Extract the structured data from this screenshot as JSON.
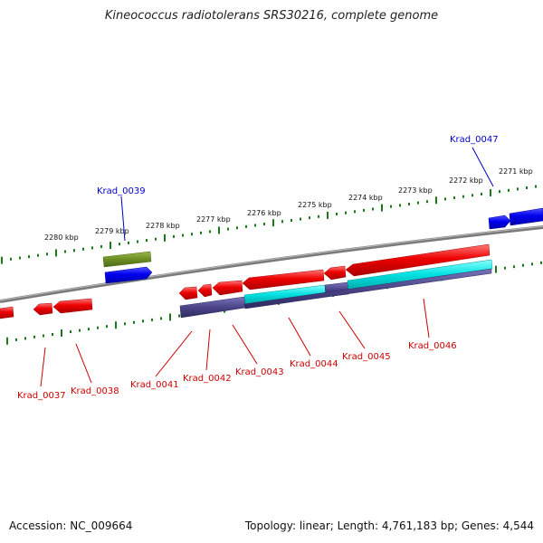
{
  "title": "Kineococcus radiotolerans SRS30216, complete genome",
  "footer": {
    "accession": "Accession: NC_009664",
    "stats": "Topology: linear; Length: 4,761,183 bp; Genes: 4,544"
  },
  "colors": {
    "forward_cds": "#0000dd",
    "reverse_cds": "#dd0000",
    "backbone": "#888888",
    "ticks": "#1a7a1a",
    "cyan_feature": "#00dddd",
    "navy_feature": "#4a4488",
    "olive_feature": "#6b8e23"
  },
  "ticks": [
    {
      "label": "2280 kbp"
    },
    {
      "label": "2279 kbp"
    },
    {
      "label": "2278 kbp"
    },
    {
      "label": "2277 kbp"
    },
    {
      "label": "2276 kbp"
    },
    {
      "label": "2275 kbp"
    },
    {
      "label": "2274 kbp"
    },
    {
      "label": "2273 kbp"
    },
    {
      "label": "2272 kbp"
    },
    {
      "label": "2271 kbp"
    }
  ],
  "genes": [
    {
      "label": "Krad_0047",
      "strand": "forward"
    },
    {
      "label": "Krad_0039",
      "strand": "forward"
    },
    {
      "label": "Krad_0037",
      "strand": "reverse"
    },
    {
      "label": "Krad_0038",
      "strand": "reverse"
    },
    {
      "label": "Krad_0041",
      "strand": "reverse"
    },
    {
      "label": "Krad_0042",
      "strand": "reverse"
    },
    {
      "label": "Krad_0043",
      "strand": "reverse"
    },
    {
      "label": "Krad_0044",
      "strand": "reverse"
    },
    {
      "label": "Krad_0045",
      "strand": "reverse"
    },
    {
      "label": "Krad_0046",
      "strand": "reverse"
    }
  ]
}
